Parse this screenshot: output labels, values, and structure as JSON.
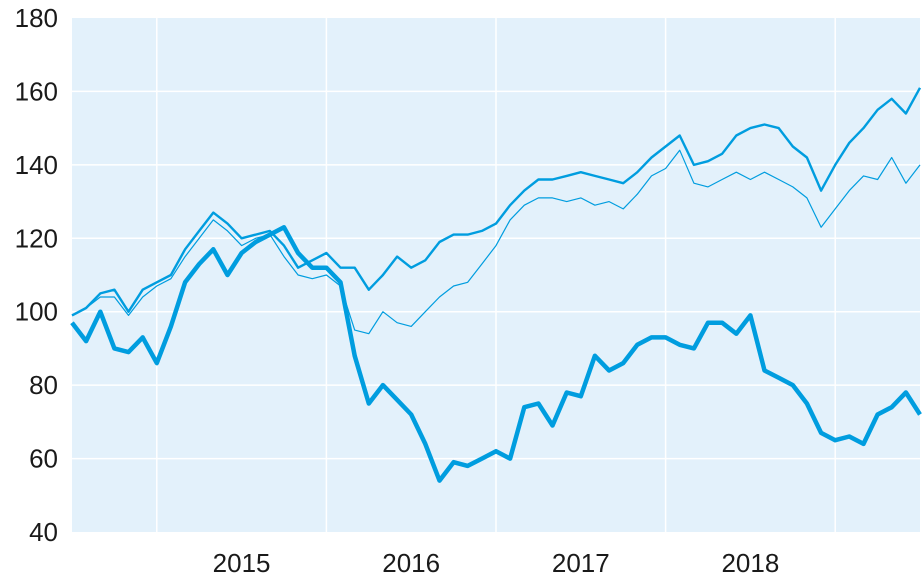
{
  "chart_data": {
    "type": "line",
    "title": "",
    "xlabel": "",
    "ylabel": "",
    "ylim": [
      40,
      180
    ],
    "yticks": [
      "40",
      "60",
      "80",
      "100",
      "120",
      "140",
      "160",
      "180"
    ],
    "xticks": [
      "2015",
      "2016",
      "2017",
      "2018"
    ],
    "x_range": [
      "2014-07",
      "2019-07"
    ],
    "x": [
      "2014-07",
      "2014-08",
      "2014-09",
      "2014-10",
      "2014-11",
      "2014-12",
      "2015-01",
      "2015-02",
      "2015-03",
      "2015-04",
      "2015-05",
      "2015-06",
      "2015-07",
      "2015-08",
      "2015-09",
      "2015-10",
      "2015-11",
      "2015-12",
      "2016-01",
      "2016-02",
      "2016-03",
      "2016-04",
      "2016-05",
      "2016-06",
      "2016-07",
      "2016-08",
      "2016-09",
      "2016-10",
      "2016-11",
      "2016-12",
      "2017-01",
      "2017-02",
      "2017-03",
      "2017-04",
      "2017-05",
      "2017-06",
      "2017-07",
      "2017-08",
      "2017-09",
      "2017-10",
      "2017-11",
      "2017-12",
      "2018-01",
      "2018-02",
      "2018-03",
      "2018-04",
      "2018-05",
      "2018-06",
      "2018-07",
      "2018-08",
      "2018-09",
      "2018-10",
      "2018-11",
      "2018-12",
      "2019-01",
      "2019-02",
      "2019-03",
      "2019-04",
      "2019-05",
      "2019-06",
      "2019-07"
    ],
    "grid": true,
    "background_color": "#e3f1fb",
    "series": [
      {
        "style": "thick",
        "color": "#009ddf",
        "values": [
          97,
          92,
          100,
          90,
          89,
          93,
          86,
          96,
          108,
          113,
          117,
          110,
          116,
          119,
          121,
          123,
          116,
          112,
          112,
          108,
          88,
          75,
          80,
          76,
          72,
          64,
          54,
          59,
          58,
          60,
          62,
          60,
          74,
          75,
          69,
          78,
          77,
          88,
          84,
          86,
          91,
          93,
          93,
          91,
          90,
          97,
          97,
          94,
          99,
          84,
          82,
          80,
          75,
          67,
          65,
          66,
          64,
          72,
          74,
          78,
          72
        ]
      },
      {
        "style": "medium",
        "color": "#009ddf",
        "values": [
          99,
          101,
          105,
          106,
          100,
          106,
          108,
          110,
          117,
          122,
          127,
          124,
          120,
          121,
          122,
          118,
          112,
          114,
          116,
          112,
          112,
          106,
          110,
          115,
          112,
          114,
          119,
          121,
          121,
          122,
          124,
          129,
          133,
          136,
          136,
          137,
          138,
          137,
          136,
          135,
          138,
          142,
          145,
          148,
          140,
          141,
          143,
          148,
          150,
          151,
          150,
          145,
          142,
          133,
          140,
          146,
          150,
          155,
          158,
          154,
          161
        ]
      },
      {
        "style": "thin",
        "color": "#009ddf",
        "values": [
          99,
          101,
          104,
          104,
          99,
          104,
          107,
          109,
          115,
          120,
          125,
          122,
          118,
          120,
          121,
          115,
          110,
          109,
          110,
          107,
          95,
          94,
          100,
          97,
          96,
          100,
          104,
          107,
          108,
          113,
          118,
          125,
          129,
          131,
          131,
          130,
          131,
          129,
          130,
          128,
          132,
          137,
          139,
          144,
          135,
          134,
          136,
          138,
          136,
          138,
          136,
          134,
          131,
          123,
          128,
          133,
          137,
          136,
          142,
          135,
          140
        ]
      }
    ]
  }
}
